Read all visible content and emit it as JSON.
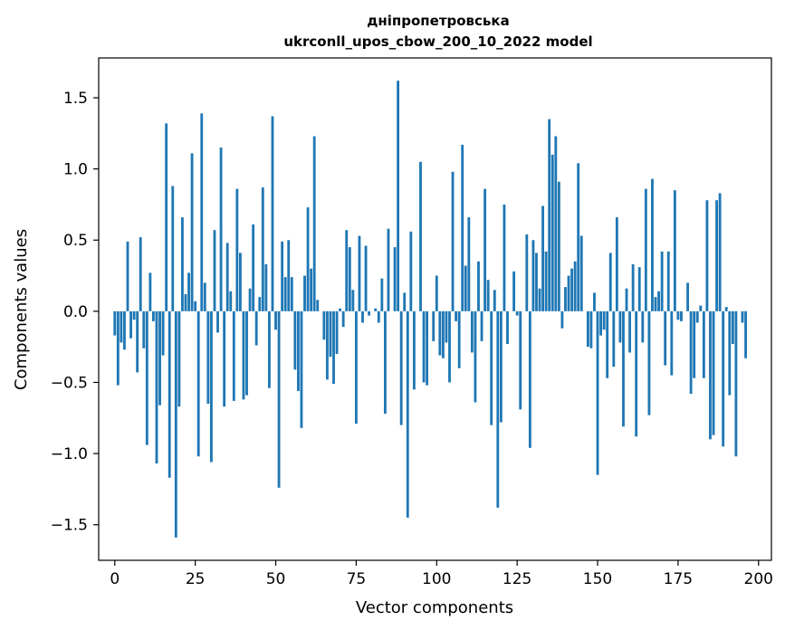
{
  "chart_data": {
    "type": "bar",
    "title": "дніпропетровська",
    "subtitle": "ukrconll_upos_cbow_200_10_2022 model",
    "xlabel": "Vector components",
    "ylabel": "Components values",
    "xlim": [
      -5,
      204
    ],
    "ylim": [
      -1.75,
      1.78
    ],
    "xticks": [
      0,
      25,
      50,
      75,
      100,
      125,
      150,
      175,
      200
    ],
    "yticks": [
      -1.5,
      -1.0,
      -0.5,
      0.0,
      0.5,
      1.0,
      1.5
    ],
    "ytick_labels": [
      "−1.5",
      "−1.0",
      "−0.5",
      "0.0",
      "0.5",
      "1.0",
      "1.5"
    ],
    "bar_color": "#1f77b4",
    "grid": false,
    "values": [
      -0.17,
      -0.52,
      -0.22,
      -0.27,
      0.49,
      -0.19,
      -0.06,
      -0.43,
      0.52,
      -0.26,
      -0.94,
      0.27,
      -0.07,
      -1.07,
      -0.66,
      -0.31,
      1.32,
      -1.17,
      0.88,
      -1.59,
      -0.67,
      0.66,
      0.12,
      0.27,
      1.11,
      0.07,
      -1.02,
      1.39,
      0.2,
      -0.65,
      -1.06,
      0.57,
      -0.15,
      1.15,
      -0.67,
      0.48,
      0.14,
      -0.63,
      0.86,
      0.41,
      -0.62,
      -0.59,
      0.16,
      0.61,
      -0.24,
      0.1,
      0.87,
      0.33,
      -0.54,
      1.37,
      -0.13,
      -1.24,
      0.49,
      0.24,
      0.5,
      0.24,
      -0.41,
      -0.56,
      -0.82,
      0.25,
      0.73,
      0.3,
      1.23,
      0.08,
      0.0,
      -0.2,
      -0.48,
      -0.32,
      -0.51,
      -0.3,
      0.02,
      -0.11,
      0.57,
      0.45,
      0.15,
      -0.79,
      0.53,
      -0.08,
      0.46,
      -0.03,
      0.0,
      0.02,
      -0.08,
      0.23,
      -0.72,
      0.58,
      0.0,
      0.45,
      1.62,
      -0.8,
      0.13,
      -1.45,
      0.56,
      -0.55,
      0.0,
      1.05,
      -0.5,
      -0.52,
      0.0,
      -0.21,
      0.25,
      -0.31,
      -0.33,
      -0.22,
      -0.5,
      0.98,
      -0.07,
      -0.4,
      1.17,
      0.32,
      0.66,
      -0.29,
      -0.64,
      0.35,
      -0.21,
      0.86,
      0.22,
      -0.8,
      0.15,
      -1.38,
      -0.78,
      0.75,
      -0.23,
      0.0,
      0.28,
      -0.03,
      -0.69,
      0.0,
      0.54,
      -0.96,
      0.5,
      0.41,
      0.16,
      0.74,
      0.42,
      1.35,
      1.1,
      1.23,
      0.91,
      -0.12,
      0.17,
      0.25,
      0.3,
      0.35,
      1.04,
      0.53,
      0.0,
      -0.25,
      -0.26,
      0.13,
      -1.15,
      -0.17,
      -0.13,
      -0.47,
      0.41,
      -0.39,
      0.66,
      -0.22,
      -0.81,
      0.16,
      -0.29,
      0.33,
      -0.88,
      0.31,
      -0.22,
      0.86,
      -0.73,
      0.93,
      0.1,
      0.14,
      0.42,
      -0.38,
      0.42,
      -0.45,
      0.85,
      -0.06,
      -0.07,
      0.0,
      0.2,
      -0.58,
      -0.47,
      -0.08,
      0.04,
      -0.47,
      0.78,
      -0.9,
      -0.87,
      0.78,
      0.83,
      -0.95,
      0.03,
      -0.59,
      -0.23,
      -1.02,
      0.0,
      -0.08,
      -0.33
    ]
  }
}
